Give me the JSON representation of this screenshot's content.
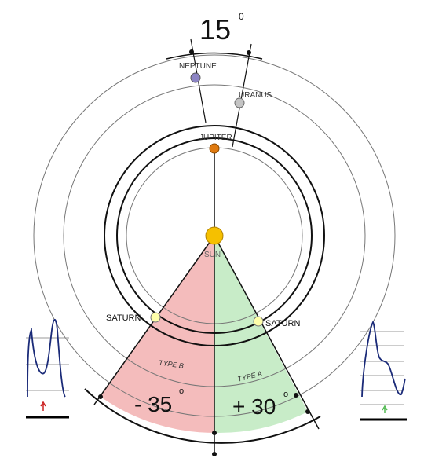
{
  "top_angle": {
    "value": "15",
    "degree": "0"
  },
  "planets": {
    "sun": "SUN",
    "jupiter": "JUPITER",
    "uranus": "URANUS",
    "neptune": "NEPTUNE",
    "saturn_left": "SATURN",
    "saturn_right": "SATURN"
  },
  "sectors": {
    "type_b": "TYPE B",
    "type_a": "TYPE A",
    "left_angle": {
      "value": "- 35",
      "degree": "o"
    },
    "right_angle": {
      "value": "+ 30",
      "degree": "o"
    }
  },
  "colors": {
    "sector_left": "#f4bcbc",
    "sector_right": "#c8ecc8",
    "sun": "#f5c000",
    "jupiter": "#e07a10",
    "neptune": "#8c84c4",
    "uranus": "#c4c4c4",
    "saturn": "#ffffaa",
    "curve": "#1a2a78",
    "arrow_left": "#cc2222",
    "arrow_right": "#55bb55"
  }
}
